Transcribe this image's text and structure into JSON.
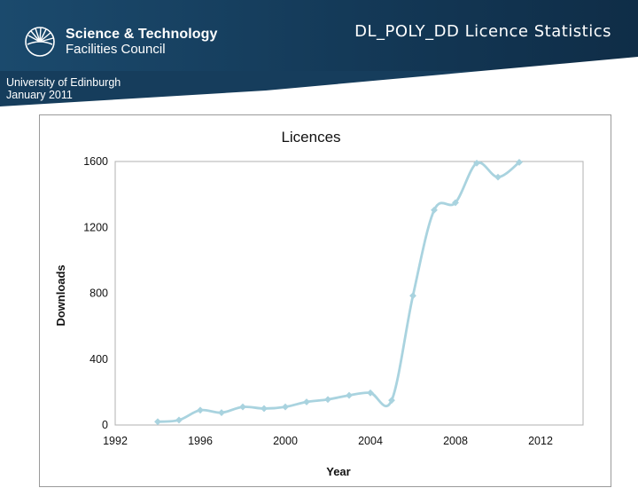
{
  "slide": {
    "title": "DL_POLY_DD Licence Statistics",
    "org_line1": "Science & Technology",
    "org_line2": "Facilities Council",
    "meta_line1": "University of Edinburgh",
    "meta_line2": "January 2011"
  },
  "colors": {
    "header": "#163d5c",
    "series": "#a9d3df",
    "plot_border": "#b0b0b0"
  },
  "chart_data": {
    "type": "line",
    "title": "Licences",
    "xlabel": "Year",
    "ylabel": "Downloads",
    "xlim": [
      1992,
      2014
    ],
    "ylim": [
      0,
      1600
    ],
    "xticks": [
      1992,
      1996,
      2000,
      2004,
      2008,
      2012
    ],
    "yticks": [
      0,
      400,
      800,
      1200,
      1600
    ],
    "grid": false,
    "smooth": true,
    "markers": "diamond",
    "series": [
      {
        "x": [
          1994,
          1995,
          1996,
          1997,
          1998,
          1999,
          2000,
          2001,
          2002,
          2003,
          2004,
          2005,
          2006,
          2007,
          2008,
          2009,
          2010,
          2011
        ],
        "y": [
          20,
          30,
          90,
          75,
          110,
          100,
          110,
          140,
          155,
          180,
          195,
          150,
          785,
          1305,
          1350,
          1590,
          1505,
          1595
        ]
      }
    ]
  }
}
